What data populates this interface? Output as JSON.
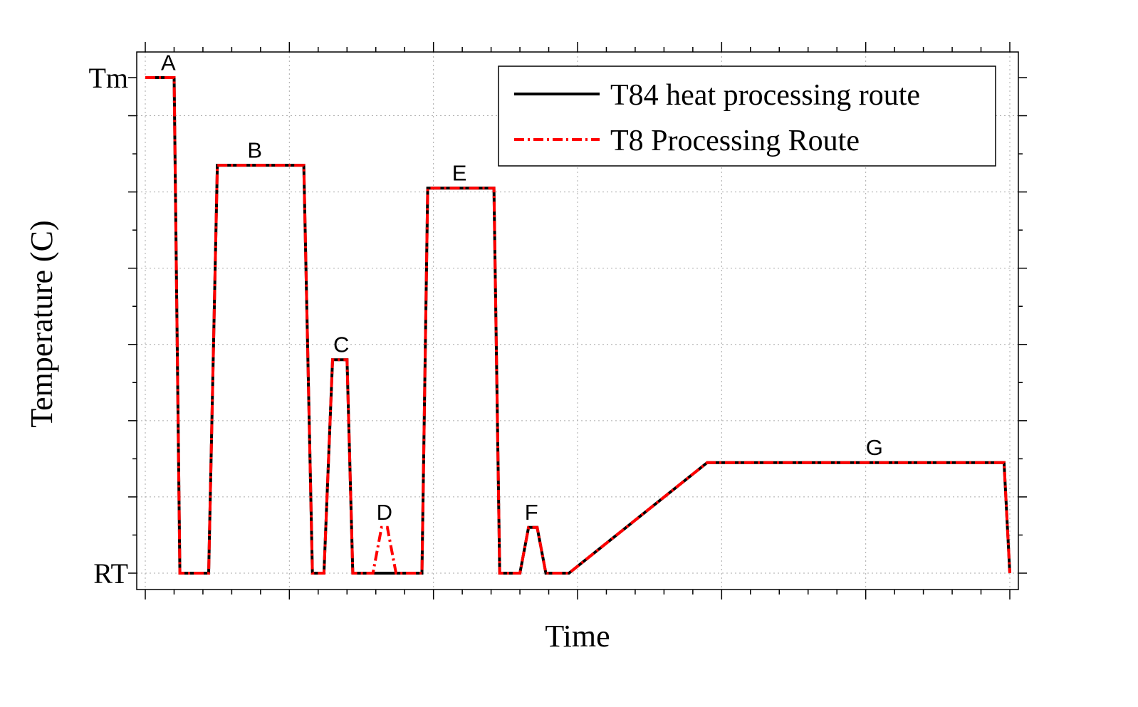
{
  "chart_data": {
    "type": "line",
    "title": "",
    "xlabel": "Time",
    "ylabel": "Temperature (C)",
    "xlim": [
      0,
      30
    ],
    "ylim": [
      -0.5,
      13.5
    ],
    "y_ticks": [
      {
        "value": 0,
        "label": "RT"
      },
      {
        "value": 13,
        "label": "Tm"
      }
    ],
    "grid": true,
    "legend_position": "top-right",
    "series": [
      {
        "name": "T84 heat processing route",
        "color": "#000000",
        "style": "solid",
        "x": [
          0,
          1.0,
          1.2,
          2.2,
          2.5,
          5.5,
          5.8,
          6.2,
          6.5,
          7.0,
          7.2,
          7.7,
          9.6,
          9.8,
          12.1,
          12.3,
          13.0,
          13.3,
          13.6,
          13.9,
          14.7,
          19.5,
          29.8,
          30.0
        ],
        "y": [
          13,
          13,
          0,
          0,
          10.7,
          10.7,
          0,
          0,
          5.6,
          5.6,
          0,
          0,
          0,
          10.1,
          10.1,
          0,
          0,
          1.2,
          1.2,
          0,
          0,
          2.9,
          2.9,
          0
        ]
      },
      {
        "name": "T8 Processing Route",
        "color": "#ff0000",
        "style": "dash-dot",
        "x": [
          0,
          1.0,
          1.2,
          2.2,
          2.5,
          5.5,
          5.8,
          6.2,
          6.5,
          7.0,
          7.2,
          7.9,
          8.2,
          8.4,
          8.7,
          9.6,
          9.8,
          12.1,
          12.3,
          13.0,
          13.3,
          13.6,
          13.9,
          14.7,
          19.5,
          29.8,
          30.0
        ],
        "y": [
          13,
          13,
          0,
          0,
          10.7,
          10.7,
          0,
          0,
          5.6,
          5.6,
          0,
          0,
          1.2,
          1.2,
          0,
          0,
          10.1,
          10.1,
          0,
          0,
          1.2,
          1.2,
          0,
          0,
          2.9,
          2.9,
          0
        ]
      }
    ],
    "annotations": [
      {
        "text": "A",
        "x": 0.8,
        "y": 13.2
      },
      {
        "text": "B",
        "x": 3.8,
        "y": 10.9
      },
      {
        "text": "C",
        "x": 6.8,
        "y": 5.8
      },
      {
        "text": "D",
        "x": 8.3,
        "y": 1.4
      },
      {
        "text": "E",
        "x": 10.9,
        "y": 10.3
      },
      {
        "text": "F",
        "x": 13.4,
        "y": 1.4
      },
      {
        "text": "G",
        "x": 25.3,
        "y": 3.1
      }
    ]
  }
}
